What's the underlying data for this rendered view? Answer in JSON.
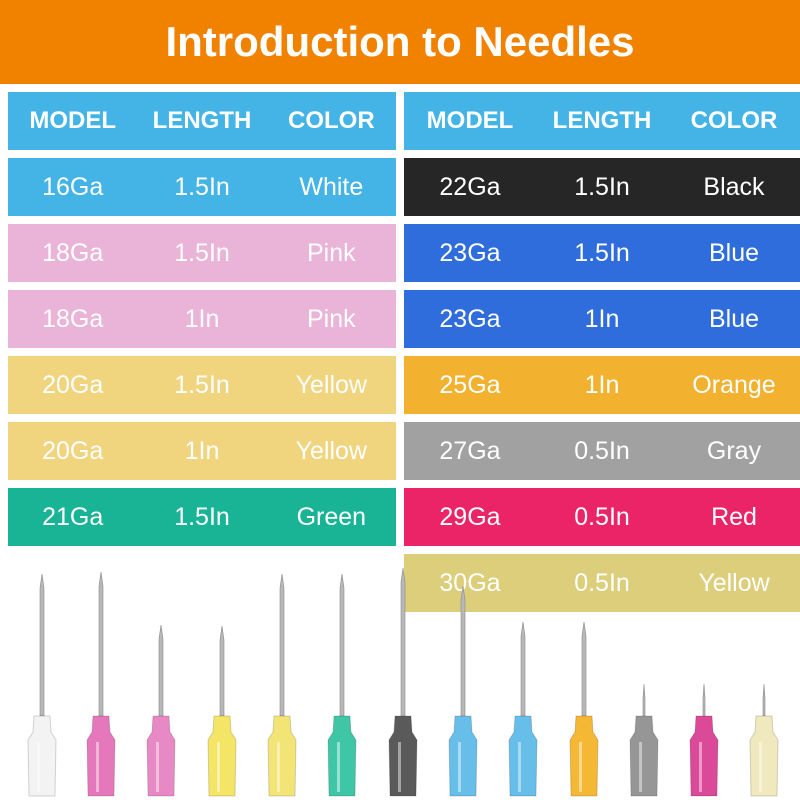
{
  "title": "Introduction to Needles",
  "headers": [
    "MODEL",
    "LENGTH",
    "COLOR"
  ],
  "header_color": "#44b4e6",
  "left_rows": [
    {
      "model": "16Ga",
      "length": "1.5In",
      "color": "White",
      "bg": "#44b4e6",
      "fg": "#ffffff"
    },
    {
      "model": "18Ga",
      "length": "1.5In",
      "color": "Pink",
      "bg": "#eab3d8",
      "fg": "#ffffff"
    },
    {
      "model": "18Ga",
      "length": "1In",
      "color": "Pink",
      "bg": "#eab3d8",
      "fg": "#ffffff"
    },
    {
      "model": "20Ga",
      "length": "1.5In",
      "color": "Yellow",
      "bg": "#f0d47e",
      "fg": "#ffffff"
    },
    {
      "model": "20Ga",
      "length": "1In",
      "color": "Yellow",
      "bg": "#f0d47e",
      "fg": "#ffffff"
    },
    {
      "model": "21Ga",
      "length": "1.5In",
      "color": "Green",
      "bg": "#19b495",
      "fg": "#ffffff"
    }
  ],
  "right_rows": [
    {
      "model": "22Ga",
      "length": "1.5In",
      "color": "Black",
      "bg": "#262626",
      "fg": "#ffffff"
    },
    {
      "model": "23Ga",
      "length": "1.5In",
      "color": "Blue",
      "bg": "#2f6cdc",
      "fg": "#ffffff"
    },
    {
      "model": "23Ga",
      "length": "1In",
      "color": "Blue",
      "bg": "#2f6cdc",
      "fg": "#ffffff"
    },
    {
      "model": "25Ga",
      "length": "1In",
      "color": "Orange",
      "bg": "#f2b12f",
      "fg": "#ffffff"
    },
    {
      "model": "27Ga",
      "length": "0.5In",
      "color": "Gray",
      "bg": "#a1a1a1",
      "fg": "#ffffff"
    },
    {
      "model": "29Ga",
      "length": "0.5In",
      "color": "Red",
      "bg": "#ea2466",
      "fg": "#ffffff"
    },
    {
      "model": "30Ga",
      "length": "0.5In",
      "color": "Yellow",
      "bg": "#dcce7a",
      "fg": "#ffffff"
    }
  ],
  "needle_hub_colors": [
    "#f2f2f2",
    "#e36db5",
    "#e680bf",
    "#f4e35b",
    "#f1e36a",
    "#2fc29f",
    "#4d4d4d",
    "#5ab9e8",
    "#5ab9e8",
    "#f5b223",
    "#8e8e8e",
    "#d93a91",
    "#efe8b8"
  ]
}
